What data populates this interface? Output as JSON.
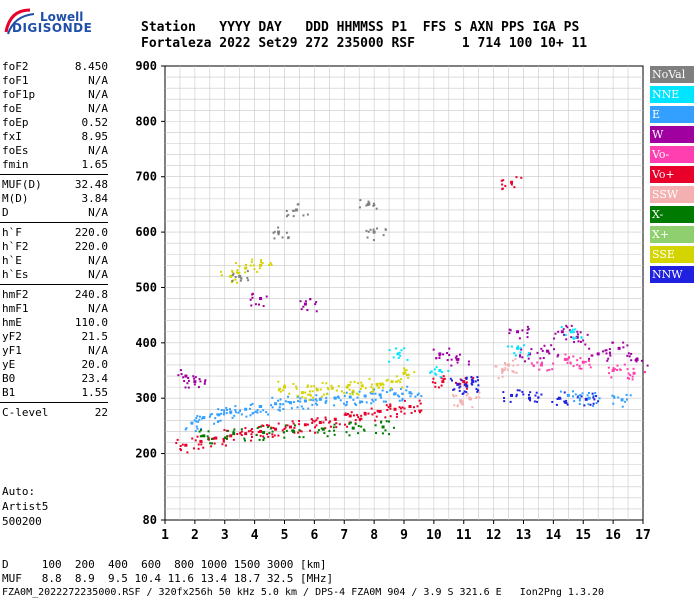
{
  "logo": {
    "top": "Lowell",
    "bottom": "DIGISONDE"
  },
  "header": {
    "labels": "Station   YYYY DAY   DDD HHMMSS P1  FFS S AXN PPS IGA PS",
    "values": "Fortaleza 2022 Set29 272 235000 RSF      1 714 100 10+ 11"
  },
  "params": [
    {
      "name": "foF2",
      "value": "8.450"
    },
    {
      "name": "foF1",
      "value": "N/A"
    },
    {
      "name": "foF1p",
      "value": "N/A"
    },
    {
      "name": "foE",
      "value": "N/A"
    },
    {
      "name": "foEp",
      "value": "0.52"
    },
    {
      "name": "fxI",
      "value": "8.95"
    },
    {
      "name": "foEs",
      "value": "N/A"
    },
    {
      "name": "fmin",
      "value": "1.65"
    },
    {
      "name": "MUF(D)",
      "value": "32.48"
    },
    {
      "name": "M(D)",
      "value": "3.84"
    },
    {
      "name": "D",
      "value": "N/A"
    },
    {
      "name": "h`F",
      "value": "220.0"
    },
    {
      "name": "h`F2",
      "value": "220.0"
    },
    {
      "name": "h`E",
      "value": "N/A"
    },
    {
      "name": "h`Es",
      "value": "N/A"
    },
    {
      "name": "hmF2",
      "value": "240.8"
    },
    {
      "name": "hmF1",
      "value": "N/A"
    },
    {
      "name": "hmE",
      "value": "110.0"
    },
    {
      "name": "yF2",
      "value": "21.5"
    },
    {
      "name": "yF1",
      "value": "N/A"
    },
    {
      "name": "yE",
      "value": "20.0"
    },
    {
      "name": "B0",
      "value": "23.4"
    },
    {
      "name": "B1",
      "value": "1.55"
    },
    {
      "name": "C-level",
      "value": "22"
    }
  ],
  "auto": {
    "line1": "Auto:",
    "line2": "Artist5",
    "line3": "500200"
  },
  "legend": [
    {
      "label": "NoVal",
      "color": "#7f7f7f"
    },
    {
      "label": "NNE",
      "color": "#00e5ff"
    },
    {
      "label": "E",
      "color": "#33a0ff"
    },
    {
      "label": "W",
      "color": "#a000a0"
    },
    {
      "label": "Vo-",
      "color": "#ff3fb0"
    },
    {
      "label": "Vo+",
      "color": "#e8002a"
    },
    {
      "label": "SSW",
      "color": "#f4b0b0"
    },
    {
      "label": "X-",
      "color": "#007a00"
    },
    {
      "label": "X+",
      "color": "#8fcf6f"
    },
    {
      "label": "SSE",
      "color": "#d4d400"
    },
    {
      "label": "NNW",
      "color": "#2020e0"
    }
  ],
  "chart_data": {
    "type": "scatter",
    "xlim": [
      1,
      17
    ],
    "ylim": [
      80,
      900
    ],
    "xticks": [
      "1",
      "2",
      "3",
      "4",
      "5",
      "6",
      "7",
      "8",
      "9",
      "10",
      "11",
      "12",
      "13",
      "14",
      "15",
      "16",
      "17"
    ],
    "yticks": [
      "80",
      "200",
      "300",
      "400",
      "500",
      "600",
      "700",
      "800",
      "900"
    ],
    "grid": true,
    "series": [
      {
        "name": "E",
        "color": "#33a0ff",
        "points": [
          [
            1.9,
            255
          ],
          [
            2.3,
            265
          ],
          [
            2.8,
            270
          ],
          [
            3.2,
            275
          ],
          [
            3.7,
            280
          ],
          [
            4.2,
            285
          ],
          [
            4.7,
            290
          ],
          [
            5.2,
            292
          ],
          [
            5.7,
            295
          ],
          [
            6.2,
            298
          ],
          [
            6.7,
            300
          ],
          [
            7.2,
            302
          ],
          [
            7.7,
            304
          ],
          [
            8.2,
            306
          ],
          [
            8.7,
            308
          ],
          [
            9.2,
            310
          ],
          [
            14.5,
            305
          ],
          [
            15.2,
            300
          ],
          [
            16.3,
            297
          ]
        ]
      },
      {
        "name": "Vo+",
        "color": "#e8002a",
        "points": [
          [
            1.7,
            215
          ],
          [
            2.2,
            222
          ],
          [
            2.7,
            228
          ],
          [
            3.2,
            232
          ],
          [
            3.7,
            236
          ],
          [
            4.2,
            240
          ],
          [
            4.7,
            244
          ],
          [
            5.2,
            248
          ],
          [
            5.7,
            252
          ],
          [
            6.2,
            256
          ],
          [
            6.7,
            262
          ],
          [
            7.2,
            268
          ],
          [
            7.7,
            272
          ],
          [
            8.2,
            276
          ],
          [
            8.7,
            280
          ],
          [
            9.2,
            285
          ],
          [
            10.3,
            330
          ],
          [
            11.0,
            330
          ],
          [
            12.6,
            690
          ]
        ]
      },
      {
        "name": "SSE",
        "color": "#d4d400",
        "points": [
          [
            3.2,
            520
          ],
          [
            3.7,
            535
          ],
          [
            4.2,
            540
          ],
          [
            5.0,
            320
          ],
          [
            5.6,
            310
          ],
          [
            6.1,
            315
          ],
          [
            6.6,
            318
          ],
          [
            7.1,
            320
          ],
          [
            7.6,
            322
          ],
          [
            8.1,
            325
          ],
          [
            8.6,
            330
          ],
          [
            9.0,
            345
          ]
        ]
      },
      {
        "name": "W",
        "color": "#a000a0",
        "points": [
          [
            1.7,
            340
          ],
          [
            2.0,
            330
          ],
          [
            4.2,
            480
          ],
          [
            5.7,
            470
          ],
          [
            10.2,
            380
          ],
          [
            10.8,
            370
          ],
          [
            12.8,
            420
          ],
          [
            13.2,
            380
          ],
          [
            13.8,
            385
          ],
          [
            14.3,
            420
          ],
          [
            14.8,
            410
          ],
          [
            15.5,
            380
          ],
          [
            16.2,
            390
          ],
          [
            16.8,
            370
          ]
        ]
      },
      {
        "name": "NNW",
        "color": "#2020e0",
        "points": [
          [
            10.8,
            325
          ],
          [
            11.1,
            322
          ],
          [
            11.3,
            330
          ],
          [
            12.6,
            305
          ],
          [
            13.2,
            300
          ],
          [
            14.2,
            300
          ],
          [
            15.1,
            298
          ]
        ]
      },
      {
        "name": "Vo-",
        "color": "#ff3fb0",
        "points": [
          [
            13.6,
            360
          ],
          [
            14.4,
            370
          ],
          [
            15.0,
            365
          ],
          [
            16.0,
            350
          ],
          [
            16.7,
            345
          ]
        ]
      },
      {
        "name": "SSW",
        "color": "#f4b0b0",
        "points": [
          [
            10.9,
            295
          ],
          [
            11.2,
            300
          ],
          [
            12.3,
            350
          ],
          [
            12.5,
            360
          ]
        ]
      },
      {
        "name": "X-",
        "color": "#007a00",
        "points": [
          [
            2.3,
            232
          ],
          [
            3.3,
            236
          ],
          [
            4.3,
            238
          ],
          [
            5.3,
            240
          ],
          [
            6.3,
            244
          ],
          [
            7.3,
            246
          ],
          [
            8.3,
            248
          ]
        ]
      },
      {
        "name": "NNE",
        "color": "#00e5ff",
        "points": [
          [
            8.8,
            380
          ],
          [
            10.2,
            350
          ],
          [
            12.8,
            390
          ],
          [
            14.6,
            420
          ]
        ]
      },
      {
        "name": "NoVal",
        "color": "#7f7f7f",
        "points": [
          [
            3.5,
            520
          ],
          [
            4.8,
            600
          ],
          [
            5.4,
            640
          ],
          [
            7.8,
            650
          ],
          [
            8.0,
            600
          ]
        ]
      }
    ]
  },
  "footer": {
    "d_line": "D     100  200  400  600  800 1000 1500 3000 [km]",
    "muf_line": "MUF   8.8  8.9  9.5 10.4 11.6 13.4 18.7 32.5 [MHz]",
    "info_line": "FZA0M_2022272235000.RSF / 320fx256h 50 kHz 5.0 km / DPS-4 FZA0M 904 / 3.9 S 321.6 E   Ion2Png 1.3.20"
  }
}
